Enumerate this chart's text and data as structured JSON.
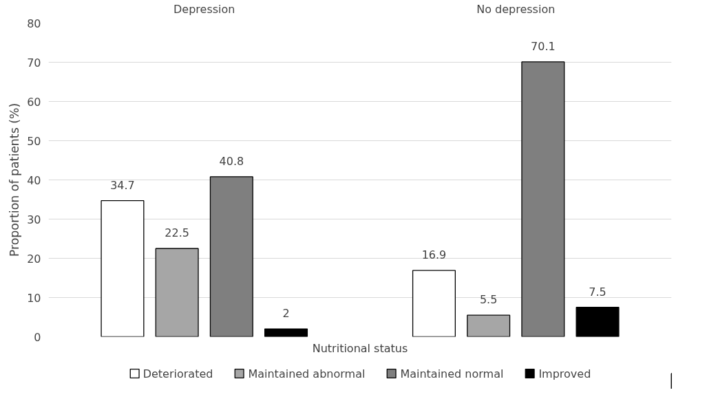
{
  "chart_data": {
    "type": "bar",
    "categories": [
      "Depression",
      "No depression"
    ],
    "xlabel": "Nutritional status",
    "ylabel": "Proportion of patients (%)",
    "series": [
      {
        "name": "Deteriorated",
        "color": "#ffffff",
        "values": [
          34.7,
          16.9
        ]
      },
      {
        "name": "Maintained abnormal",
        "color": "#a6a6a6",
        "values": [
          22.5,
          5.5
        ]
      },
      {
        "name": "Maintained normal",
        "color": "#7f7f7f",
        "values": [
          40.8,
          70.1
        ]
      },
      {
        "name": "Improved",
        "color": "#000000",
        "values": [
          2,
          7.5
        ]
      }
    ],
    "ylim": [
      0,
      80
    ],
    "yticks": [
      0,
      10,
      20,
      30,
      40,
      50,
      60,
      70,
      80
    ],
    "grid": "y",
    "legend": "bottom",
    "data_labels": true
  }
}
